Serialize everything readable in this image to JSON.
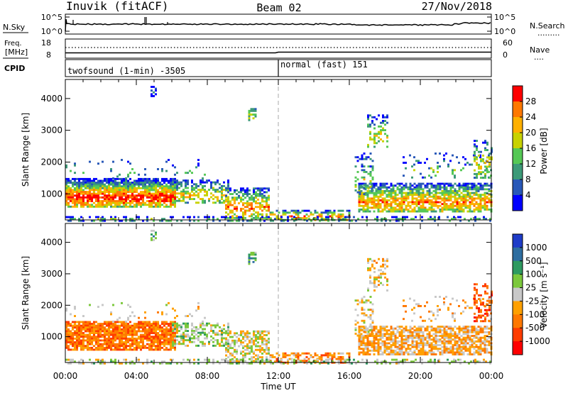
{
  "header": {
    "station": "Inuvik (fitACF)",
    "beam": "Beam 02",
    "date": "27/Nov/2018"
  },
  "nsky_panel": {
    "left_label": "N.Sky",
    "right_label": "N.Search",
    "right_legend_dots": ".........",
    "left_ticks": [
      "10^5",
      "10^0"
    ],
    "right_ticks": [
      "10^5",
      "10^0"
    ]
  },
  "freq_panel": {
    "left_label_line1": "Freq.",
    "left_label_line2": "[MHz]",
    "right_label": "Nave",
    "right_legend_dots": "....",
    "left_ticks": [
      "18",
      "8"
    ],
    "right_ticks": [
      "60",
      "0"
    ]
  },
  "cpid_panel": {
    "label": "CPID",
    "left_program": "twofsound (1-min) -3505",
    "right_program": "normal (fast) 151"
  },
  "chart_data": [
    {
      "type": "heatmap",
      "name": "power",
      "ylabel": "Slant Range [km]",
      "yticks": [
        1000,
        2000,
        3000,
        4000
      ],
      "ylim": [
        180,
        4600
      ],
      "xticks": [
        "00:00",
        "04:00",
        "08:00",
        "12:00",
        "16:00",
        "20:00",
        "00:00"
      ],
      "xlim_hours": [
        0,
        24
      ],
      "colorbar": {
        "label": "Power [dB]",
        "ticks": [
          "28",
          "24",
          "20",
          "16",
          "12",
          "8",
          "4"
        ],
        "colors": [
          "#ff0000",
          "#ff7800",
          "#ffb000",
          "#c8d200",
          "#55c855",
          "#3c9a78",
          "#2858b8",
          "#0000ff"
        ]
      }
    },
    {
      "type": "heatmap",
      "name": "velocity",
      "ylabel": "Slant Range [km]",
      "yticks": [
        1000,
        2000,
        3000,
        4000
      ],
      "ylim": [
        180,
        4600
      ],
      "xticks": [
        "00:00",
        "04:00",
        "08:00",
        "12:00",
        "16:00",
        "20:00",
        "00:00"
      ],
      "xlim_hours": [
        0,
        24
      ],
      "xlabel": "Time UT",
      "colorbar": {
        "label": "Velocity [m s⁻¹]",
        "ticks": [
          "1000",
          "500",
          "100",
          "25",
          "-25",
          "-100",
          "-500",
          "-1000"
        ],
        "colors": [
          "#1e3cc8",
          "#2e6ea0",
          "#2e9a60",
          "#7cc83c",
          "#c8c8c8",
          "#ffa000",
          "#ff7800",
          "#ff3c00",
          "#ff0000"
        ]
      }
    }
  ]
}
